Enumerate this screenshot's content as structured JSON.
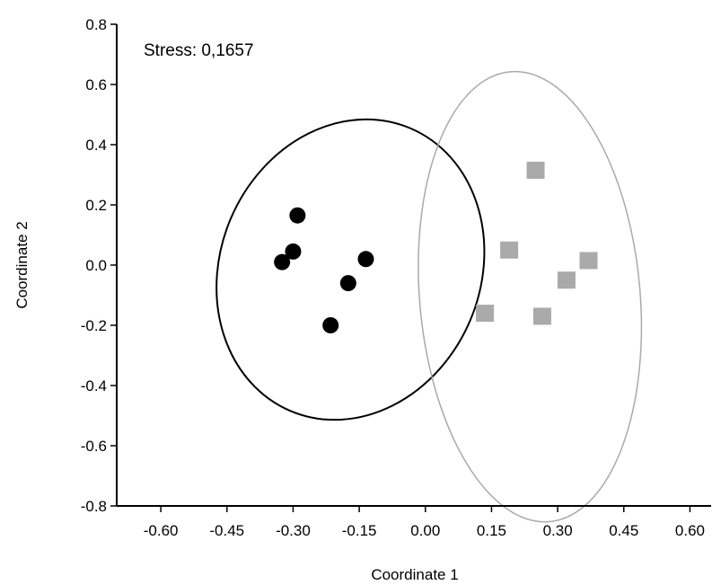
{
  "chart_data": {
    "type": "scatter",
    "annotation": "Stress: 0,1657",
    "xlabel": "Coordinate 1",
    "ylabel": "Coordinate 2",
    "xlim": [
      -0.7,
      0.65
    ],
    "ylim": [
      -0.8,
      0.8
    ],
    "x_ticks": [
      -0.6,
      -0.45,
      -0.3,
      -0.15,
      0.0,
      0.15,
      0.3,
      0.45,
      0.6
    ],
    "x_tick_labels": [
      "-0.60",
      "-0.45",
      "-0.30",
      "-0.15",
      "0.00",
      "0.15",
      "0.30",
      "0.45",
      "0.60"
    ],
    "y_ticks": [
      -0.8,
      -0.6,
      -0.4,
      -0.2,
      0.0,
      0.2,
      0.4,
      0.6,
      0.8
    ],
    "y_tick_labels": [
      "-0.8",
      "-0.6",
      "-0.4",
      "-0.2",
      "0.0",
      "0.2",
      "0.4",
      "0.6",
      "0.8"
    ],
    "grid": false,
    "series": [
      {
        "marker": "circle",
        "color": "#000000",
        "points": [
          {
            "x": -0.29,
            "y": 0.165
          },
          {
            "x": -0.3,
            "y": 0.045
          },
          {
            "x": -0.325,
            "y": 0.01
          },
          {
            "x": -0.135,
            "y": 0.02
          },
          {
            "x": -0.175,
            "y": -0.06
          },
          {
            "x": -0.215,
            "y": -0.2
          }
        ],
        "ellipse": {
          "cx": -0.17,
          "cy": -0.015,
          "rx": 0.295,
          "ry": 0.51,
          "angle": 23,
          "color": "#000000"
        }
      },
      {
        "marker": "square",
        "color": "#aaaaaa",
        "points": [
          {
            "x": 0.25,
            "y": 0.315
          },
          {
            "x": 0.19,
            "y": 0.05
          },
          {
            "x": 0.37,
            "y": 0.015
          },
          {
            "x": 0.32,
            "y": -0.05
          },
          {
            "x": 0.135,
            "y": -0.16
          },
          {
            "x": 0.265,
            "y": -0.17
          }
        ],
        "ellipse": {
          "cx": 0.237,
          "cy": -0.105,
          "rx": 0.25,
          "ry": 0.75,
          "angle": -5,
          "color": "#aaaaaa"
        }
      }
    ]
  }
}
